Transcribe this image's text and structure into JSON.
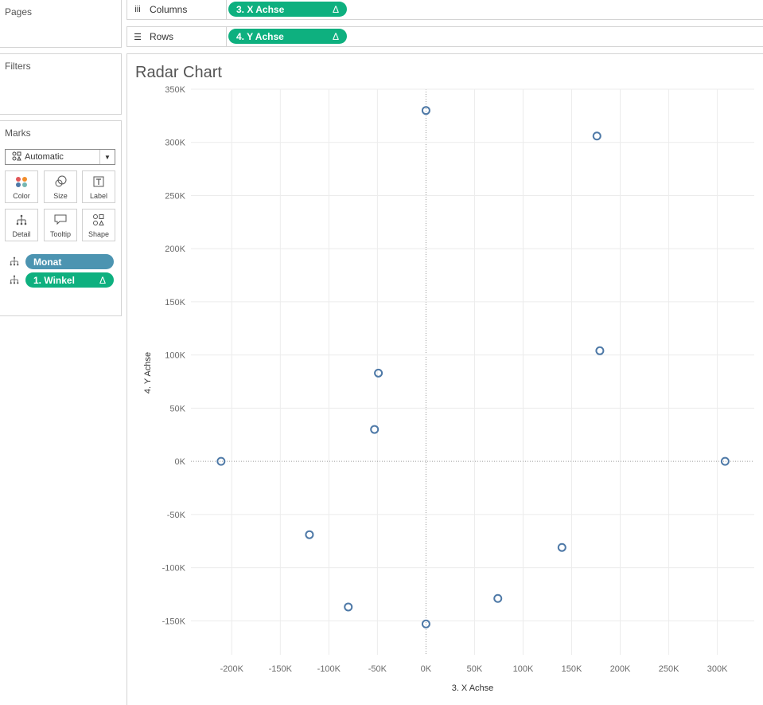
{
  "pages_card": {
    "title": "Pages"
  },
  "filters_card": {
    "title": "Filters"
  },
  "marks_card": {
    "title": "Marks",
    "mark_type": "Automatic",
    "buttons": [
      {
        "label": "Color",
        "icon": "color-dots-icon"
      },
      {
        "label": "Size",
        "icon": "size-icon"
      },
      {
        "label": "Label",
        "icon": "label-icon"
      },
      {
        "label": "Detail",
        "icon": "detail-icon"
      },
      {
        "label": "Tooltip",
        "icon": "tooltip-icon"
      },
      {
        "label": "Shape",
        "icon": "shape-icon"
      }
    ],
    "fields": [
      {
        "label": "Monat",
        "delta": "",
        "color": "#4c94b1"
      },
      {
        "label": "1. Winkel",
        "delta": "Δ",
        "color": "#0eb07f"
      }
    ]
  },
  "shelves": {
    "columns": {
      "label": "Columns",
      "pill": "3. X Achse",
      "delta": "Δ"
    },
    "rows": {
      "label": "Rows",
      "pill": "4. Y Achse",
      "delta": "Δ"
    }
  },
  "colors": {
    "pill_green": "#0eb07f",
    "pill_blue": "#4c94b1",
    "mark": "#4e79a7"
  },
  "chart_data": {
    "type": "scatter",
    "title": "Radar Chart",
    "xlabel": "3. X Achse",
    "ylabel": "4. Y Achse",
    "xlim": [
      -242000,
      338000
    ],
    "ylim": [
      -182000,
      350000
    ],
    "x_ticks": [
      -200000,
      -150000,
      -100000,
      -50000,
      0,
      50000,
      100000,
      150000,
      200000,
      250000,
      300000
    ],
    "x_tick_labels": [
      "-200K",
      "-150K",
      "-100K",
      "-50K",
      "0K",
      "50K",
      "100K",
      "150K",
      "200K",
      "250K",
      "300K"
    ],
    "y_ticks": [
      -150000,
      -100000,
      -50000,
      0,
      50000,
      100000,
      150000,
      200000,
      250000,
      300000,
      350000
    ],
    "y_tick_labels": [
      "-150K",
      "-100K",
      "-50K",
      "0K",
      "50K",
      "100K",
      "150K",
      "200K",
      "250K",
      "300K",
      "350K"
    ],
    "grid": true,
    "points": [
      {
        "x": 0,
        "y": 330000
      },
      {
        "x": 176000,
        "y": 306000
      },
      {
        "x": 179000,
        "y": 104000
      },
      {
        "x": 308000,
        "y": 0
      },
      {
        "x": 140000,
        "y": -81000
      },
      {
        "x": 74000,
        "y": -129000
      },
      {
        "x": 0,
        "y": -153000
      },
      {
        "x": -80000,
        "y": -137000
      },
      {
        "x": -120000,
        "y": -69000
      },
      {
        "x": -211000,
        "y": 0
      },
      {
        "x": -53000,
        "y": 30000
      },
      {
        "x": -49000,
        "y": 83000
      }
    ]
  }
}
